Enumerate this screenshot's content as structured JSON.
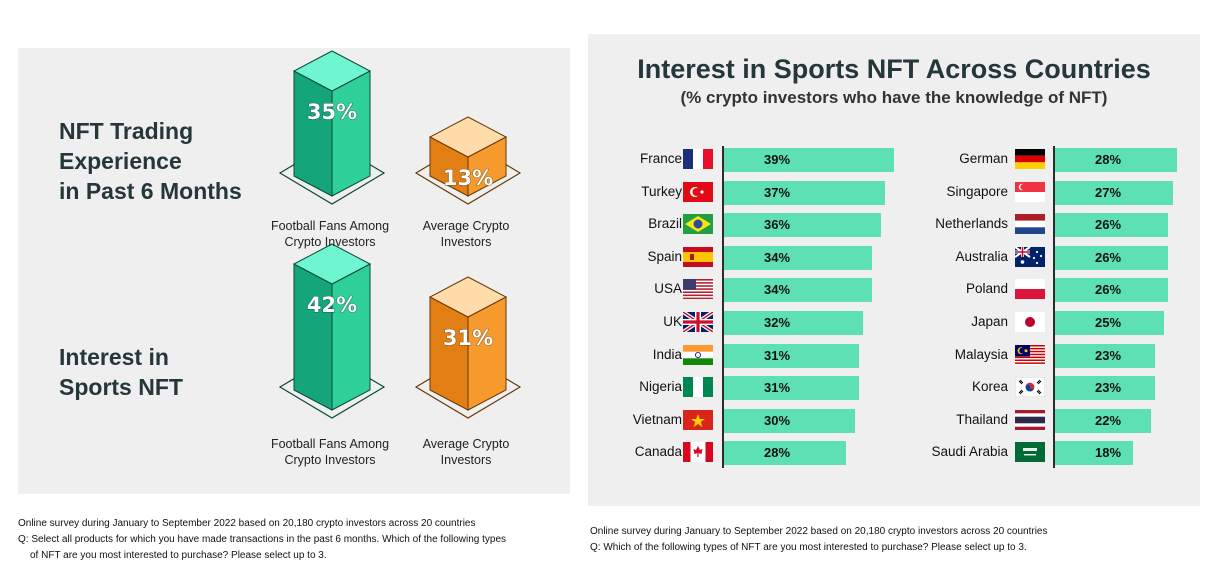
{
  "left": {
    "section1_title_lines": [
      "NFT Trading",
      "Experience",
      "in Past 6 Months"
    ],
    "section2_title_lines": [
      "Interest in",
      "Sports NFT"
    ],
    "section1_values": [
      "35%",
      "13%"
    ],
    "section2_values": [
      "42%",
      "31%"
    ],
    "label_fans_lines": [
      "Football Fans Among",
      "Crypto Investors"
    ],
    "label_avg_lines": [
      "Average Crypto",
      "Investors"
    ]
  },
  "right": {
    "title": "Interest in Sports NFT Across Countries",
    "subtitle": "(% crypto investors who have the knowledge of NFT)"
  },
  "notes": {
    "left_line1": "Online survey during January to September 2022 based on 20,180 crypto investors across 20 countries",
    "left_line2": "Q: Select all products for which you have made transactions in the past 6 months. Which of the following types",
    "left_line3": "of NFT are you most interested to purchase? Please select up to 3.",
    "right_line1": "Online survey during January to September 2022 based on 20,180 crypto investors across 20 countries",
    "right_line2": "Q: Which of the following types of NFT are you most interested to purchase? Please select up to 3."
  },
  "colors": {
    "teal": "#5ce0b4",
    "orange": "#f79a2e",
    "dark_title": "#25373b"
  },
  "chart_data": [
    {
      "type": "bar",
      "title": "NFT Trading Experience in Past 6 Months",
      "categories": [
        "Football Fans Among Crypto Investors",
        "Average Crypto Investors"
      ],
      "values": [
        35,
        13
      ],
      "unit": "%"
    },
    {
      "type": "bar",
      "title": "Interest in Sports NFT",
      "categories": [
        "Football Fans Among Crypto Investors",
        "Average Crypto Investors"
      ],
      "values": [
        42,
        31
      ],
      "unit": "%"
    },
    {
      "type": "bar",
      "orientation": "horizontal",
      "title": "Interest in Sports NFT Across Countries",
      "subtitle": "(% crypto investors who have the knowledge of NFT)",
      "unit": "%",
      "columns": [
        {
          "categories": [
            "France",
            "Turkey",
            "Brazil",
            "Spain",
            "USA",
            "UK",
            "India",
            "Nigeria",
            "Vietnam",
            "Canada"
          ],
          "values": [
            39,
            37,
            36,
            34,
            34,
            32,
            31,
            31,
            30,
            28
          ],
          "labels": [
            "39%",
            "37%",
            "36%",
            "34%",
            "34%",
            "32%",
            "31%",
            "31%",
            "30%",
            "28%"
          ]
        },
        {
          "categories": [
            "German",
            "Singapore",
            "Netherlands",
            "Australia",
            "Poland",
            "Japan",
            "Malaysia",
            "Korea",
            "Thailand",
            "Saudi Arabia"
          ],
          "values": [
            28,
            27,
            26,
            26,
            26,
            25,
            23,
            23,
            22,
            18
          ],
          "labels": [
            "28%",
            "27%",
            "26%",
            "26%",
            "26%",
            "25%",
            "23%",
            "23%",
            "22%",
            "18%"
          ]
        }
      ]
    }
  ]
}
